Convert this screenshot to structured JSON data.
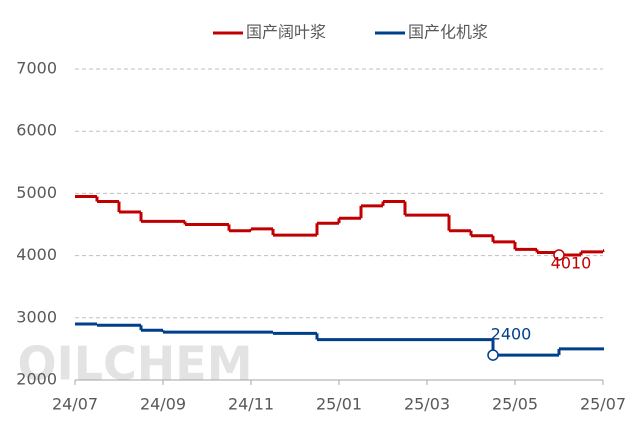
{
  "chart_data": {
    "type": "line",
    "step": true,
    "watermark": "OILCHEM",
    "categories": [
      "24/07",
      null,
      null,
      null,
      "24/09",
      null,
      null,
      null,
      "24/11",
      null,
      null,
      null,
      "25/01",
      null,
      null,
      null,
      "25/03",
      null,
      null,
      null,
      "25/05",
      null,
      null,
      null,
      "25/07"
    ],
    "series": [
      {
        "name": "国产阔叶浆",
        "color": "#c00000",
        "values": [
          4950,
          4870,
          4700,
          4550,
          4550,
          4500,
          4500,
          4400,
          4430,
          4330,
          4330,
          4520,
          4600,
          4800,
          4870,
          4650,
          4650,
          4400,
          4320,
          4220,
          4100,
          4050,
          4010,
          4060,
          4080
        ],
        "value_labels": [
          null,
          null,
          null,
          null,
          null,
          null,
          null,
          null,
          null,
          null,
          null,
          null,
          null,
          null,
          null,
          null,
          null,
          null,
          null,
          null,
          null,
          null,
          "4010",
          null,
          null
        ]
      },
      {
        "name": "国产化机浆",
        "color": "#003f8a",
        "values": [
          2900,
          2880,
          2880,
          2800,
          2770,
          2770,
          2770,
          2770,
          2770,
          2750,
          2750,
          2650,
          2650,
          2650,
          2650,
          2650,
          2650,
          2650,
          2650,
          2400,
          2400,
          2400,
          2500,
          2500,
          2500
        ],
        "value_labels": [
          null,
          null,
          null,
          null,
          null,
          null,
          null,
          null,
          null,
          null,
          null,
          null,
          null,
          null,
          null,
          null,
          null,
          null,
          null,
          "2400",
          null,
          null,
          null,
          null,
          null
        ]
      }
    ],
    "ylim": [
      2000,
      7000
    ],
    "yticks": [
      2000,
      3000,
      4000,
      5000,
      6000,
      7000
    ],
    "grid": true,
    "legend": "top"
  }
}
